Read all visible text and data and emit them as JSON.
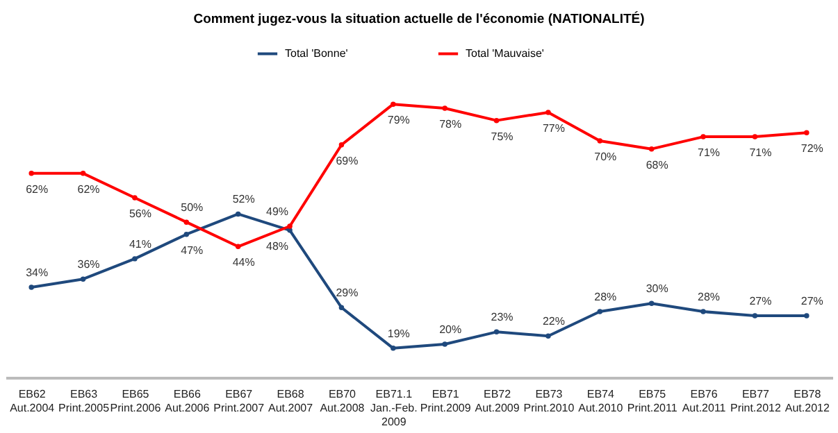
{
  "chart_data": {
    "type": "line",
    "title": "Comment jugez-vous la situation actuelle  de l'économie (NATIONALITÉ)",
    "categories": [
      "EB62\nAut.2004",
      "EB63\nPrint.2005",
      "EB65\nPrint.2006",
      "EB66\nAut.2006",
      "EB67\nPrint.2007",
      "EB68\nAut.2007",
      "EB70\nAut.2008",
      "EB71.1\nJan.-Feb.\n2009",
      "EB71\nPrint.2009",
      "EB72\nAut.2009",
      "EB73\nPrint.2010",
      "EB74\nAut.2010",
      "EB75\nPrint.2011",
      "EB76\nAut.2011",
      "EB77\nPrint.2012",
      "EB78\nAut.2012"
    ],
    "series": [
      {
        "name": "Total 'Bonne'",
        "color": "#1f497d",
        "values": [
          34,
          36,
          41,
          47,
          52,
          48,
          29,
          19,
          20,
          23,
          22,
          28,
          30,
          28,
          27,
          27
        ],
        "value_labels": [
          "34%",
          "36%",
          "41%",
          "47%",
          "52%",
          "48%",
          "29%",
          "19%",
          "20%",
          "23%",
          "22%",
          "28%",
          "30%",
          "28%",
          "27%",
          "27%"
        ]
      },
      {
        "name": "Total 'Mauvaise'",
        "color": "#ff0000",
        "values": [
          62,
          62,
          56,
          50,
          44,
          49,
          69,
          79,
          78,
          75,
          77,
          70,
          68,
          71,
          71,
          72
        ],
        "value_labels": [
          "62%",
          "62%",
          "56%",
          "50%",
          "44%",
          "49%",
          "69%",
          "79%",
          "78%",
          "75%",
          "77%",
          "70%",
          "68%",
          "71%",
          "71%",
          "72%"
        ]
      }
    ],
    "legend": "top",
    "marker": "circle",
    "grid": false
  }
}
